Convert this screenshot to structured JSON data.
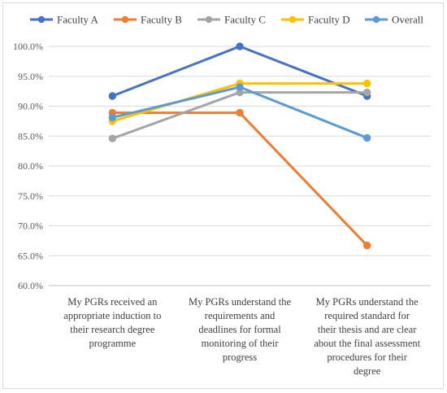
{
  "chart_data": {
    "type": "line",
    "categories": [
      [
        "My PGRs received an",
        "appropriate induction to",
        "their research degree",
        "programme"
      ],
      [
        "My PGRs understand the",
        "requirements and",
        "deadlines for formal",
        "monitoring of their",
        "progress"
      ],
      [
        "My PGRs understand the",
        "required standard for",
        "their thesis and are clear",
        "about the final assessment",
        "procedures for their",
        "degree"
      ]
    ],
    "series": [
      {
        "name": "Faculty A",
        "color": "#4472c4",
        "values": [
          91.7,
          100.0,
          91.7
        ]
      },
      {
        "name": "Faculty B",
        "color": "#ed7d31",
        "values": [
          88.9,
          88.9,
          66.7
        ]
      },
      {
        "name": "Faculty C",
        "color": "#a5a5a5",
        "values": [
          84.6,
          92.3,
          92.3
        ]
      },
      {
        "name": "Faculty D",
        "color": "#ffc000",
        "values": [
          87.5,
          93.8,
          93.8
        ]
      },
      {
        "name": "Overall",
        "color": "#5b9bd5",
        "values": [
          88.1,
          93.2,
          84.7
        ]
      }
    ],
    "yticks": [
      "60.0%",
      "65.0%",
      "70.0%",
      "75.0%",
      "80.0%",
      "85.0%",
      "90.0%",
      "95.0%",
      "100.0%"
    ],
    "ylim": [
      60,
      100
    ],
    "grid": true,
    "legend": "top",
    "title": "",
    "xlabel": "",
    "ylabel": ""
  }
}
